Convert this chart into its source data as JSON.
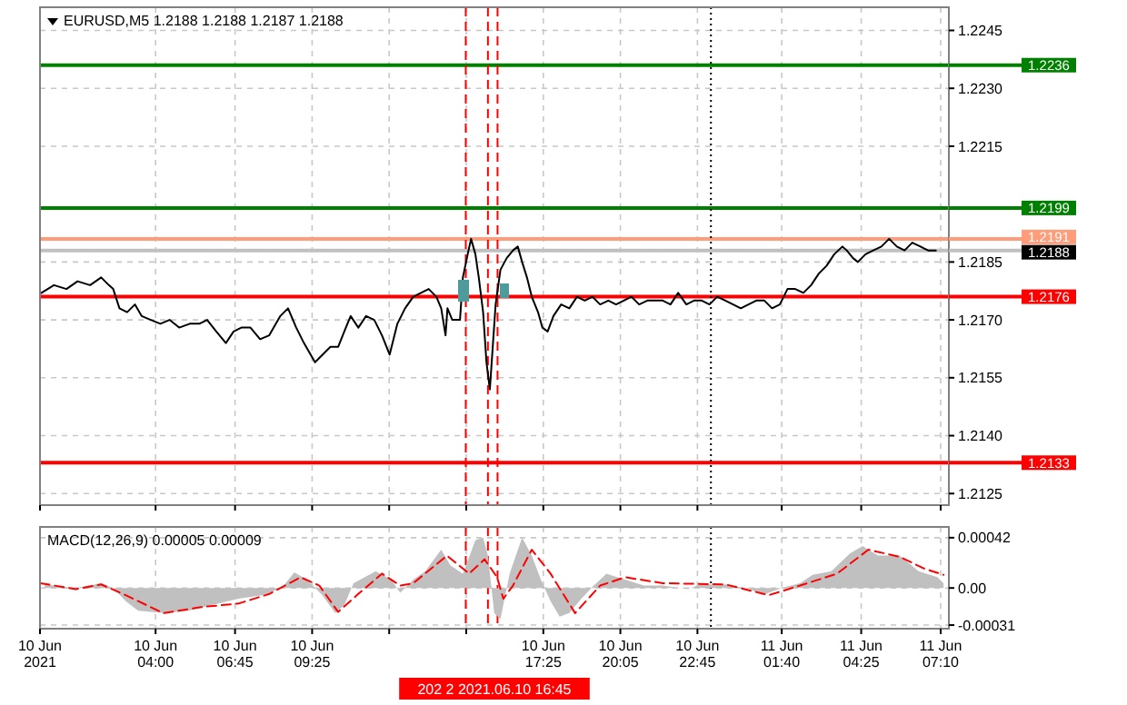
{
  "chart_data": [
    {
      "type": "line",
      "title": "EURUSD,M5  1.2188 1.2188 1.2187 1.2188",
      "xlim": [
        "2021-06-10T00:00",
        "2021-06-11T07:27"
      ],
      "xticks": [
        {
          "value": "2021-06-10T00:00",
          "label": null
        },
        {
          "value": "2021-06-10T04:00",
          "label": null
        },
        {
          "value": "2021-06-10T06:45",
          "label": null
        },
        {
          "value": "2021-06-10T09:25",
          "label": null
        },
        {
          "value": "2021-06-10T12:05",
          "label": null
        },
        {
          "value": "2021-06-10T14:45",
          "label": null
        },
        {
          "value": "2021-06-10T17:25",
          "label": null
        },
        {
          "value": "2021-06-10T20:05",
          "label": null
        },
        {
          "value": "2021-06-10T22:45",
          "label": null
        },
        {
          "value": "2021-06-11T01:40",
          "label": null
        },
        {
          "value": "2021-06-11T04:25",
          "label": null
        },
        {
          "value": "2021-06-11T07:10",
          "label": null
        }
      ],
      "ylim": [
        1.2122,
        1.2251
      ],
      "yticks": [
        1.2125,
        {
          "value": 1.214,
          "label": "1.2140"
        },
        1.2155,
        {
          "value": 1.217,
          "label": "1.2170"
        },
        1.2185,
        1.2215,
        {
          "value": 1.223,
          "label": "1.2230"
        },
        1.2245
      ],
      "tick_labels": "y",
      "grid": true,
      "series": [
        {
          "type": "line",
          "color": "#000000",
          "x": [
            "2021-06-10T00:03",
            "2021-06-10T00:29",
            "2021-06-10T00:55",
            "2021-06-10T01:18",
            "2021-06-10T01:44",
            "2021-06-10T02:07",
            "2021-06-10T02:23",
            "2021-06-10T02:32",
            "2021-06-10T02:45",
            "2021-06-10T03:01",
            "2021-06-10T03:17",
            "2021-06-10T03:31",
            "2021-06-10T03:50",
            "2021-06-10T04:10",
            "2021-06-10T04:29",
            "2021-06-10T04:49",
            "2021-06-10T05:11",
            "2021-06-10T05:31",
            "2021-06-10T05:47",
            "2021-06-10T06:06",
            "2021-06-10T06:26",
            "2021-06-10T06:42",
            "2021-06-10T06:58",
            "2021-06-10T07:17",
            "2021-06-10T07:37",
            "2021-06-10T07:56",
            "2021-06-10T08:19",
            "2021-06-10T08:35",
            "2021-06-10T08:52",
            "2021-06-10T09:08",
            "2021-06-10T09:31",
            "2021-06-10T09:47",
            "2021-06-10T10:03",
            "2021-06-10T10:19",
            "2021-06-10T10:35",
            "2021-06-10T10:45",
            "2021-06-10T11:01",
            "2021-06-10T11:17",
            "2021-06-10T11:34",
            "2021-06-10T11:50",
            "2021-06-10T12:06",
            "2021-06-10T12:22",
            "2021-06-10T12:38",
            "2021-06-10T12:55",
            "2021-06-10T13:11",
            "2021-06-10T13:27",
            "2021-06-10T13:43",
            "2021-06-10T13:53",
            "2021-06-10T14:02",
            "2021-06-10T14:06",
            "2021-06-10T14:16",
            "2021-06-10T14:32",
            "2021-06-10T14:38",
            "2021-06-10T14:48",
            "2021-06-10T14:55",
            "2021-06-10T15:04",
            "2021-06-10T15:11",
            "2021-06-10T15:20",
            "2021-06-10T15:27",
            "2021-06-10T15:34",
            "2021-06-10T15:40",
            "2021-06-10T15:46",
            "2021-06-10T15:56",
            "2021-06-10T16:09",
            "2021-06-10T16:22",
            "2021-06-10T16:32",
            "2021-06-10T16:41",
            "2021-06-10T16:51",
            "2021-06-10T17:01",
            "2021-06-10T17:14",
            "2021-06-10T17:23",
            "2021-06-10T17:34",
            "2021-06-10T17:46",
            "2021-06-10T18:02",
            "2021-06-10T18:19",
            "2021-06-10T18:35",
            "2021-06-10T18:51",
            "2021-06-10T19:07",
            "2021-06-10T19:23",
            "2021-06-10T19:40",
            "2021-06-10T19:56",
            "2021-06-10T20:12",
            "2021-06-10T20:28",
            "2021-06-10T20:44",
            "2021-06-10T21:01",
            "2021-06-10T21:17",
            "2021-06-10T21:33",
            "2021-06-10T21:49",
            "2021-06-10T22:05",
            "2021-06-10T22:22",
            "2021-06-10T22:38",
            "2021-06-10T22:54",
            "2021-06-10T23:10",
            "2021-06-10T23:26",
            "2021-06-10T23:43",
            "2021-06-10T23:59",
            "2021-06-11T00:15",
            "2021-06-11T00:31",
            "2021-06-11T00:47",
            "2021-06-11T01:04",
            "2021-06-11T01:20",
            "2021-06-11T01:36",
            "2021-06-11T01:52",
            "2021-06-11T02:08",
            "2021-06-11T02:25",
            "2021-06-11T02:41",
            "2021-06-11T02:57",
            "2021-06-11T03:13",
            "2021-06-11T03:29",
            "2021-06-11T03:46",
            "2021-06-11T03:55",
            "2021-06-11T04:08",
            "2021-06-11T04:18",
            "2021-06-11T04:34",
            "2021-06-11T04:50",
            "2021-06-11T05:07",
            "2021-06-11T05:23",
            "2021-06-11T05:39",
            "2021-06-11T05:55",
            "2021-06-11T06:11",
            "2021-06-11T06:28",
            "2021-06-11T06:44",
            "2021-06-11T07:00"
          ],
          "values": [
            1.2177,
            1.2179,
            1.2178,
            1.218,
            1.2179,
            1.2181,
            1.2179,
            1.2178,
            1.2173,
            1.2172,
            1.2174,
            1.2171,
            1.217,
            1.2169,
            1.217,
            1.2168,
            1.2169,
            1.2169,
            1.217,
            1.2167,
            1.2164,
            1.2167,
            1.2168,
            1.2168,
            1.2165,
            1.2166,
            1.2171,
            1.2173,
            1.2168,
            1.2164,
            1.2159,
            1.2161,
            1.2163,
            1.2163,
            1.2168,
            1.2171,
            1.2168,
            1.2171,
            1.217,
            1.2166,
            1.2161,
            1.2169,
            1.2173,
            1.2176,
            1.2177,
            1.2178,
            1.2176,
            1.2173,
            1.2166,
            1.2173,
            1.217,
            1.217,
            1.2181,
            1.2187,
            1.2191,
            1.2187,
            1.2181,
            1.2172,
            1.2159,
            1.2152,
            1.2163,
            1.2174,
            1.2183,
            1.2186,
            1.2188,
            1.2189,
            1.2185,
            1.2181,
            1.2176,
            1.2172,
            1.2168,
            1.2167,
            1.2171,
            1.2174,
            1.2173,
            1.2176,
            1.2175,
            1.2176,
            1.2174,
            1.2175,
            1.2174,
            1.2175,
            1.2176,
            1.2174,
            1.2175,
            1.2175,
            1.2175,
            1.2174,
            1.2177,
            1.2174,
            1.2175,
            1.2175,
            1.2174,
            1.2176,
            1.2175,
            1.2174,
            1.2173,
            1.2174,
            1.2175,
            1.2175,
            1.2173,
            1.2174,
            1.2178,
            1.2178,
            1.2177,
            1.2179,
            1.2182,
            1.2184,
            1.2187,
            1.2189,
            1.2188,
            1.2186,
            1.2185,
            1.2187,
            1.2188,
            1.2189,
            1.2191,
            1.2189,
            1.2188,
            1.219,
            1.2189,
            1.2188,
            1.2188
          ]
        }
      ],
      "ref_lines": [
        {
          "axis": "y",
          "value": 1.2236,
          "label": "1.2236",
          "color": "#008000"
        },
        {
          "axis": "y",
          "value": 1.2199,
          "label": "1.2199",
          "color": "#008000"
        },
        {
          "axis": "y",
          "value": 1.2191,
          "label": "1.2191",
          "color": "#ff9c7a"
        },
        {
          "axis": "y",
          "value": 1.2188,
          "label": "1.2188",
          "color": "#c0c0c0"
        },
        {
          "axis": "y",
          "value": 1.2176,
          "label": "1.2176",
          "color": "#ff0000"
        },
        {
          "axis": "y",
          "value": 1.2133,
          "label": "1.2133",
          "color": "#ff0000"
        },
        {
          "axis": "x",
          "value": "2021-06-10T14:44",
          "color": "#ff0000",
          "line_style": "dashed"
        },
        {
          "axis": "x",
          "value": "2021-06-10T15:30",
          "color": "#ff0000",
          "line_style": "dashed"
        },
        {
          "axis": "x",
          "value": "2021-06-10T15:50",
          "color": "#ff0000",
          "line_style": "dashed"
        },
        {
          "axis": "x",
          "value": "2021-06-10T23:13",
          "color": "#000000",
          "line_style": "dotted"
        }
      ]
    },
    {
      "type": "line",
      "title": "MACD(12,26,9) 0.00005 0.00009",
      "xlim": [
        "2021-06-10T00:00",
        "2021-06-11T07:27"
      ],
      "xticks": [
        {
          "value": "2021-06-10T00:00",
          "label": "10 Jun 2021"
        },
        {
          "value": "2021-06-10T04:00",
          "label": "10 Jun 04:00"
        },
        {
          "value": "2021-06-10T06:45",
          "label": "10 Jun 06:45"
        },
        {
          "value": "2021-06-10T09:25",
          "label": "10 Jun 09:25"
        },
        {
          "value": "2021-06-10T12:05",
          "label": null
        },
        {
          "value": "2021-06-10T14:45",
          "label": null
        },
        {
          "value": "2021-06-10T17:25",
          "label": "10 Jun 17:25"
        },
        {
          "value": "2021-06-10T20:05",
          "label": "10 Jun 20:05"
        },
        {
          "value": "2021-06-10T22:45",
          "label": "10 Jun 22:45"
        },
        {
          "value": "2021-06-11T01:40",
          "label": "11 Jun 01:40"
        },
        {
          "value": "2021-06-11T04:25",
          "label": "11 Jun 04:25"
        },
        {
          "value": "2021-06-11T07:10",
          "label": "11 Jun 07:10"
        }
      ],
      "ylim": [
        -0.00034,
        0.00051
      ],
      "yticks": [
        -0.00031,
        {
          "value": 0,
          "label": "0.00"
        },
        0.00042
      ],
      "grid": true,
      "annotations": [
        "202 2 2021.06.10 16:45"
      ],
      "series": [
        {
          "type": "area",
          "color": "#c0c0c0",
          "x": [
            "2021-06-10T00:10",
            "2021-06-10T01:14",
            "2021-06-10T02:07",
            "2021-06-10T02:32",
            "2021-06-10T02:58",
            "2021-06-10T03:24",
            "2021-06-10T04:16",
            "2021-06-10T05:08",
            "2021-06-10T05:59",
            "2021-06-10T06:52",
            "2021-06-10T07:43",
            "2021-06-10T08:22",
            "2021-06-10T08:48",
            "2021-06-10T09:14",
            "2021-06-10T09:46",
            "2021-06-10T10:13",
            "2021-06-10T10:32",
            "2021-06-10T10:51",
            "2021-06-10T11:37",
            "2021-06-10T12:09",
            "2021-06-10T12:28",
            "2021-06-10T12:55",
            "2021-06-10T13:20",
            "2021-06-10T13:53",
            "2021-06-10T14:12",
            "2021-06-10T14:38",
            "2021-06-10T15:04",
            "2021-06-10T15:20",
            "2021-06-10T15:30",
            "2021-06-10T15:43",
            "2021-06-10T15:56",
            "2021-06-10T16:15",
            "2021-06-10T16:41",
            "2021-06-10T17:01",
            "2021-06-10T17:20",
            "2021-06-10T17:40",
            "2021-06-10T17:59",
            "2021-06-10T18:19",
            "2021-06-10T18:44",
            "2021-06-10T19:10",
            "2021-06-10T19:36",
            "2021-06-10T20:15",
            "2021-06-10T20:54",
            "2021-06-10T21:33",
            "2021-06-10T22:25",
            "2021-06-10T22:50",
            "2021-06-10T23:43",
            "2021-06-11T00:34",
            "2021-06-11T01:00",
            "2021-06-11T01:39",
            "2021-06-11T02:18",
            "2021-06-11T02:44",
            "2021-06-11T03:23",
            "2021-06-11T04:02",
            "2021-06-11T04:28",
            "2021-06-11T05:00",
            "2021-06-11T05:45",
            "2021-06-11T06:24",
            "2021-06-11T07:03",
            "2021-06-11T07:16"
          ],
          "values": [
            3e-05,
            0,
            4e-05,
            0,
            -0.00011,
            -0.00019,
            -0.00021,
            -0.00019,
            -0.00014,
            -9e-05,
            -6e-05,
            0,
            0.00013,
            7e-05,
            -6e-05,
            -0.00021,
            -0.00014,
            4e-05,
            0.00014,
            7e-05,
            -4e-05,
            7e-05,
            0.00014,
            0.00032,
            0.00019,
            0.00012,
            0.0004,
            0.00042,
            0.00027,
            -0.00021,
            -0.00026,
            0.00012,
            0.00042,
            0.00027,
            7e-05,
            -0.00011,
            -0.00024,
            -0.00021,
            -9e-05,
            2e-05,
            0.00012,
            7e-05,
            2e-05,
            2e-05,
            -1e-05,
            3e-05,
            3e-05,
            -1e-05,
            -6e-05,
            0,
            4e-05,
            0.00011,
            0.00014,
            0.00029,
            0.00035,
            0.00027,
            0.00027,
            0.00014,
            9e-05,
            4e-05
          ]
        },
        {
          "type": "line",
          "color": "#ff0000",
          "line_style": "dashed",
          "x": [
            "2021-06-10T00:01",
            "2021-06-10T01:14",
            "2021-06-10T02:07",
            "2021-06-10T02:58",
            "2021-06-10T04:16",
            "2021-06-10T05:34",
            "2021-06-10T06:52",
            "2021-06-10T07:56",
            "2021-06-10T09:01",
            "2021-06-10T09:40",
            "2021-06-10T10:19",
            "2021-06-10T10:58",
            "2021-06-10T11:50",
            "2021-06-10T12:28",
            "2021-06-10T12:55",
            "2021-06-10T14:05",
            "2021-06-10T14:51",
            "2021-06-10T15:23",
            "2021-06-10T15:49",
            "2021-06-10T16:02",
            "2021-06-10T16:22",
            "2021-06-10T17:01",
            "2021-06-10T17:40",
            "2021-06-10T18:31",
            "2021-06-10T19:23",
            "2021-06-10T20:15",
            "2021-06-10T21:33",
            "2021-06-10T23:43",
            "2021-06-11T01:13",
            "2021-06-11T02:18",
            "2021-06-11T03:35",
            "2021-06-11T04:40",
            "2021-06-11T05:45",
            "2021-06-11T06:37",
            "2021-06-11T07:16"
          ],
          "values": [
            4e-05,
            -1e-05,
            3e-05,
            -6e-05,
            -0.00021,
            -0.00016,
            -0.00013,
            -5e-05,
            9e-05,
            2e-05,
            -0.0002,
            -6e-05,
            0.00012,
            2e-05,
            4e-05,
            0.00027,
            0.00012,
            0.00024,
            9e-05,
            -9e-05,
            2e-05,
            0.00032,
            0.00012,
            -0.00021,
            2e-05,
            9e-05,
            4e-05,
            3e-05,
            -6e-05,
            2e-05,
            0.00012,
            0.00032,
            0.00026,
            0.00016,
            0.00011
          ]
        }
      ],
      "ref_lines": [
        {
          "axis": "x",
          "value": "2021-06-10T14:44",
          "color": "#ff0000",
          "line_style": "dashed"
        },
        {
          "axis": "x",
          "value": "2021-06-10T15:30",
          "color": "#ff0000",
          "line_style": "dashed"
        },
        {
          "axis": "x",
          "value": "2021-06-10T15:50",
          "color": "#ff0000",
          "line_style": "dashed"
        },
        {
          "axis": "x",
          "value": "2021-06-10T23:13",
          "color": "#000000",
          "line_style": "dotted"
        }
      ]
    }
  ]
}
